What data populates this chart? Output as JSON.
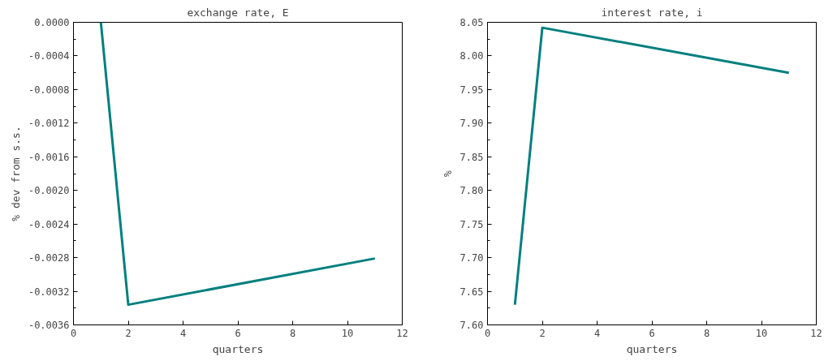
{
  "chart_data": [
    {
      "type": "line",
      "title": "exchange rate, E",
      "xlabel": "quarters",
      "ylabel": "% dev from s.s.",
      "x": [
        1,
        2,
        11
      ],
      "series": [
        {
          "color": "#007f7f",
          "values": [
            0.0,
            -0.00336,
            -0.00281
          ]
        }
      ],
      "xlim": [
        0,
        12
      ],
      "xticks": [
        0,
        2,
        4,
        6,
        8,
        10,
        12
      ],
      "ylim": [
        -0.0036,
        0.0
      ],
      "yticks": [
        {
          "value": -0.0036,
          "label": "-0.0036"
        },
        {
          "value": -0.0032,
          "label": "-0.0032"
        },
        {
          "value": -0.0028,
          "label": "-0.0028"
        },
        {
          "value": -0.0024,
          "label": "-0.0024"
        },
        {
          "value": -0.002,
          "label": "-0.0020"
        },
        {
          "value": -0.0016,
          "label": "-0.0016"
        },
        {
          "value": -0.0012,
          "label": "-0.0012"
        },
        {
          "value": -0.0008,
          "label": "-0.0008"
        },
        {
          "value": -0.0004,
          "label": "-0.0004"
        },
        {
          "value": 0.0,
          "label": "0.0000"
        }
      ],
      "grid": false
    },
    {
      "type": "line",
      "title": "interest rate, i",
      "xlabel": "quarters",
      "ylabel": "%",
      "x": [
        1,
        2,
        11
      ],
      "series": [
        {
          "color": "#007f7f",
          "values": [
            7.63,
            8.042,
            7.975
          ]
        }
      ],
      "xlim": [
        0,
        12
      ],
      "xticks": [
        0,
        2,
        4,
        6,
        8,
        10,
        12
      ],
      "ylim": [
        7.6,
        8.05
      ],
      "yticks": [
        {
          "value": 7.6,
          "label": "7.60"
        },
        {
          "value": 7.65,
          "label": "7.65"
        },
        {
          "value": 7.7,
          "label": "7.70"
        },
        {
          "value": 7.75,
          "label": "7.75"
        },
        {
          "value": 7.8,
          "label": "7.80"
        },
        {
          "value": 7.85,
          "label": "7.85"
        },
        {
          "value": 7.9,
          "label": "7.90"
        },
        {
          "value": 7.95,
          "label": "7.95"
        },
        {
          "value": 8.0,
          "label": "8.00"
        },
        {
          "value": 8.05,
          "label": "8.05"
        }
      ],
      "grid": false
    }
  ]
}
